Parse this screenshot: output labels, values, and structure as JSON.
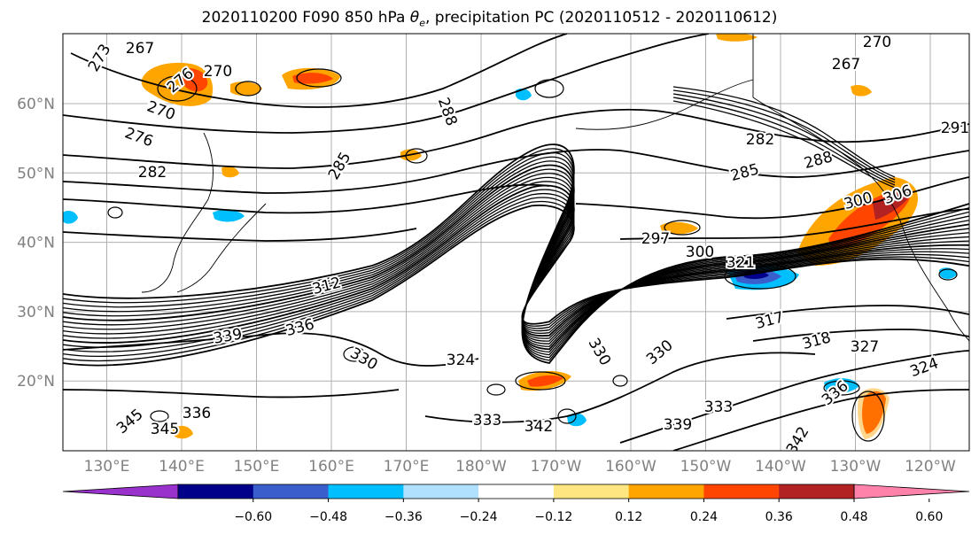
{
  "title": {
    "prefix": "2020110200 F090 850 hPa ",
    "theta": "θ",
    "theta_sub": "e",
    "suffix": ", precipitation PC (2020110512 - 2020110612)"
  },
  "map": {
    "lat_labels": [
      "60°N",
      "50°N",
      "40°N",
      "30°N",
      "20°N"
    ],
    "lat_values": [
      60,
      50,
      40,
      30,
      20
    ],
    "lon_labels": [
      "130°E",
      "140°E",
      "150°E",
      "160°E",
      "170°E",
      "180°W",
      "170°W",
      "160°W",
      "150°W",
      "140°W",
      "130°W",
      "120°W"
    ],
    "lon_values": [
      130,
      140,
      150,
      160,
      170,
      180,
      190,
      200,
      210,
      220,
      230,
      240
    ],
    "contour_labels": [
      {
        "text": "273"
      },
      {
        "text": "267"
      },
      {
        "text": "276"
      },
      {
        "text": "270"
      },
      {
        "text": "276"
      },
      {
        "text": "282"
      },
      {
        "text": "285"
      },
      {
        "text": "288"
      },
      {
        "text": "270"
      },
      {
        "text": "267"
      },
      {
        "text": "270"
      },
      {
        "text": "282"
      },
      {
        "text": "285"
      },
      {
        "text": "288"
      },
      {
        "text": "297"
      },
      {
        "text": "300"
      },
      {
        "text": "300"
      },
      {
        "text": "306"
      },
      {
        "text": "321"
      },
      {
        "text": "312"
      },
      {
        "text": "339"
      },
      {
        "text": "336"
      },
      {
        "text": "330"
      },
      {
        "text": "324"
      },
      {
        "text": "330"
      },
      {
        "text": "330"
      },
      {
        "text": "333"
      },
      {
        "text": "342"
      },
      {
        "text": "336"
      },
      {
        "text": "345"
      },
      {
        "text": "345"
      },
      {
        "text": "339"
      },
      {
        "text": "333"
      },
      {
        "text": "317"
      },
      {
        "text": "318"
      },
      {
        "text": "327"
      },
      {
        "text": "324"
      },
      {
        "text": "336"
      },
      {
        "text": "342"
      },
      {
        "text": "291"
      }
    ]
  },
  "colorbar": {
    "tick_labels": [
      "−0.60",
      "−0.48",
      "−0.36",
      "−0.24",
      "−0.12",
      "0.12",
      "0.24",
      "0.36",
      "0.48",
      "0.60"
    ],
    "colors": [
      "#9932cc",
      "#00008b",
      "#3a5fcd",
      "#00bfff",
      "#b0e2ff",
      "#ffffff",
      "#ffe680",
      "#ffa500",
      "#ff4500",
      "#b22222",
      "#ff82ab"
    ]
  }
}
